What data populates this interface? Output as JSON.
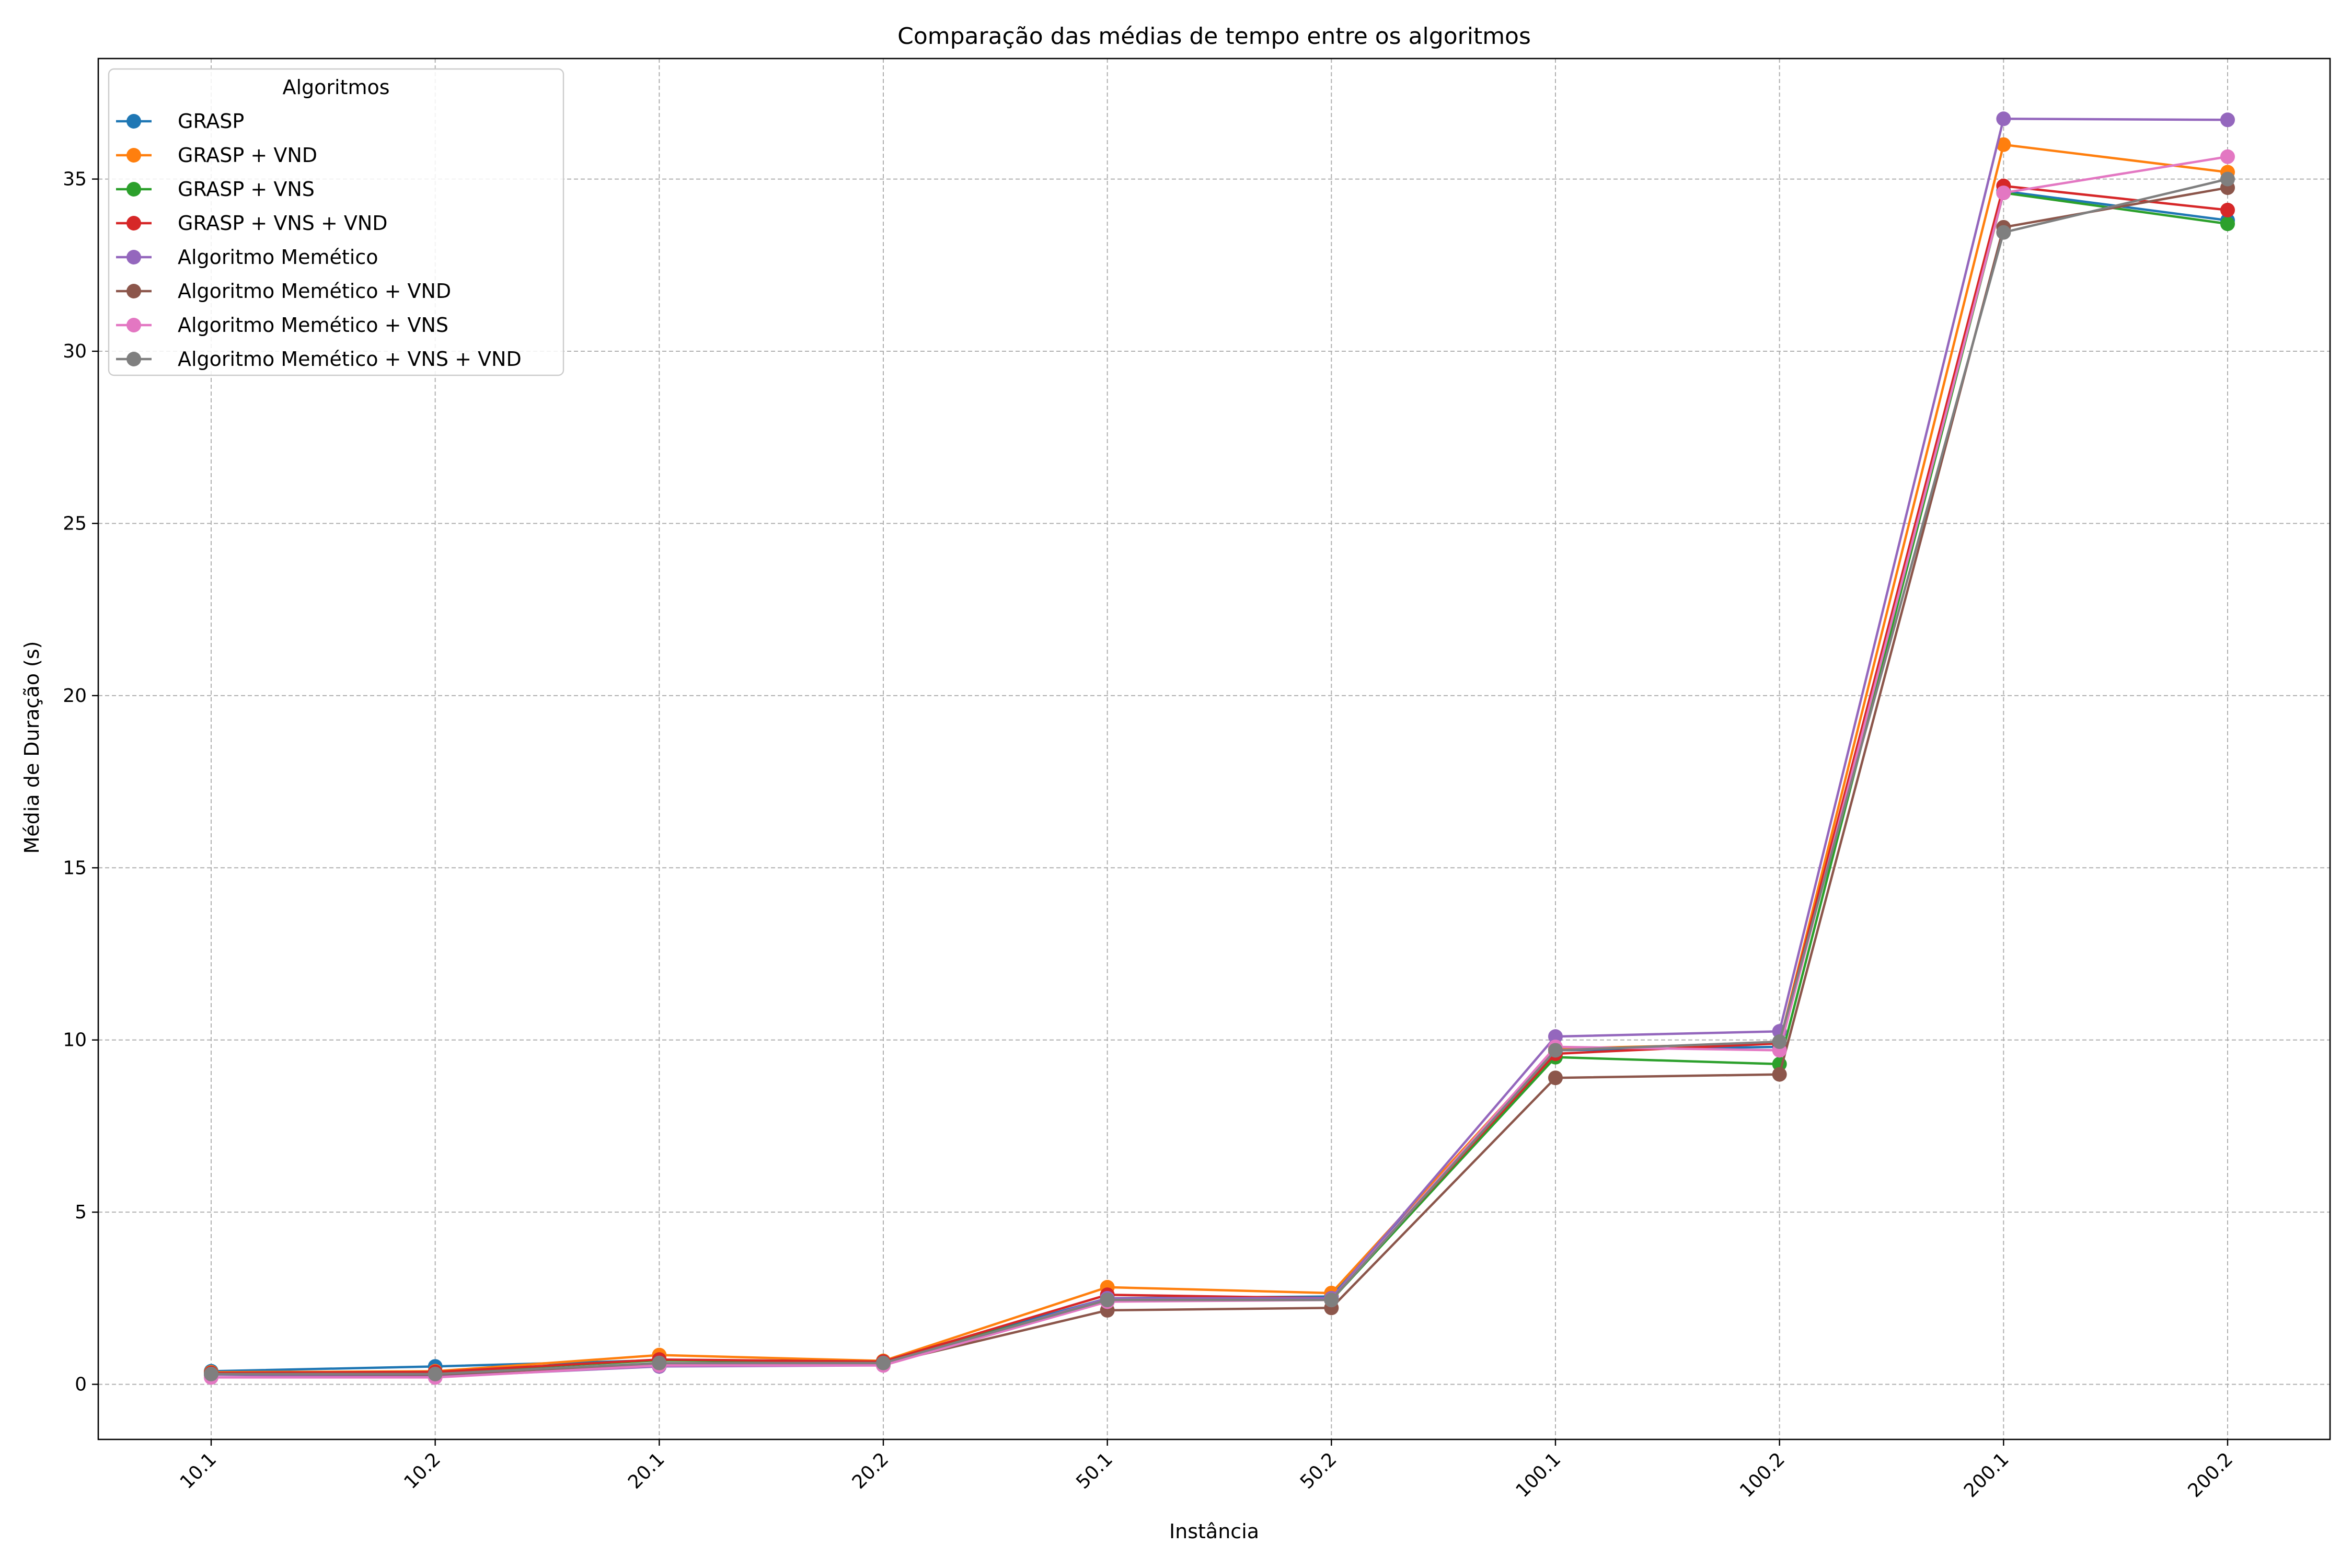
{
  "chart_data": {
    "type": "line",
    "title": "Comparação das médias de tempo entre os algoritmos",
    "xlabel": "Instância",
    "ylabel": "Média de Duração (s)",
    "categories": [
      "10.1",
      "10.2",
      "20.1",
      "20.2",
      "50.1",
      "50.2",
      "100.1",
      "100.2",
      "200.1",
      "200.2"
    ],
    "ylim": [
      -1.6,
      38.5
    ],
    "yticks": [
      0,
      5,
      10,
      15,
      20,
      25,
      30,
      35
    ],
    "grid": true,
    "legend": {
      "title": "Algoritmos",
      "placement": "top-left"
    },
    "series": [
      {
        "name": "GRASP",
        "color": "#1f77b4",
        "values": [
          0.38,
          0.52,
          0.7,
          0.68,
          2.5,
          2.55,
          9.7,
          9.8,
          34.65,
          33.8
        ]
      },
      {
        "name": "GRASP + VND",
        "color": "#ff7f0e",
        "values": [
          0.35,
          0.38,
          0.85,
          0.68,
          2.82,
          2.65,
          9.75,
          9.9,
          36.0,
          35.2
        ]
      },
      {
        "name": "GRASP + VNS",
        "color": "#2ca02c",
        "values": [
          0.32,
          0.35,
          0.7,
          0.65,
          2.45,
          2.45,
          9.5,
          9.3,
          34.6,
          33.7
        ]
      },
      {
        "name": "GRASP + VNS + VND",
        "color": "#d62728",
        "values": [
          0.33,
          0.36,
          0.72,
          0.66,
          2.6,
          2.5,
          9.6,
          9.9,
          34.8,
          34.1
        ]
      },
      {
        "name": "Algoritmo Memético",
        "color": "#9467bd",
        "values": [
          0.28,
          0.22,
          0.52,
          0.55,
          2.5,
          2.5,
          10.1,
          10.25,
          36.75,
          36.72
        ]
      },
      {
        "name": "Algoritmo Memético + VND",
        "color": "#8c564b",
        "values": [
          0.3,
          0.28,
          0.6,
          0.6,
          2.15,
          2.22,
          8.9,
          9.0,
          33.6,
          34.75
        ]
      },
      {
        "name": "Algoritmo Memético + VNS",
        "color": "#e377c2",
        "values": [
          0.2,
          0.2,
          0.55,
          0.55,
          2.4,
          2.45,
          9.8,
          9.7,
          34.6,
          35.65
        ]
      },
      {
        "name": "Algoritmo Memético + VNS + VND",
        "color": "#7f7f7f",
        "values": [
          0.3,
          0.3,
          0.62,
          0.62,
          2.45,
          2.45,
          9.7,
          9.95,
          33.45,
          35.0
        ]
      }
    ]
  }
}
